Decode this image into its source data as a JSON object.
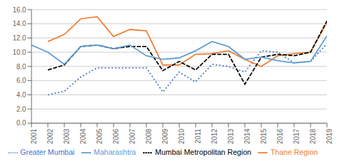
{
  "chart_data": {
    "type": "line",
    "x": [
      2001,
      2002,
      2003,
      2004,
      2005,
      2006,
      2007,
      2008,
      2009,
      2010,
      2011,
      2012,
      2013,
      2014,
      2015,
      2016,
      2017,
      2018,
      2019
    ],
    "series": [
      {
        "name": "Greater Mumbai",
        "color": "#4472C4",
        "line_style": "dotted",
        "values": [
          null,
          4.0,
          4.5,
          6.5,
          7.8,
          7.8,
          7.8,
          7.8,
          4.4,
          7.2,
          5.8,
          8.3,
          8.0,
          7.2,
          10.2,
          10.0,
          8.5,
          8.7,
          11.2
        ]
      },
      {
        "name": "Thane Region",
        "color": "#ED7D31",
        "line_style": "solid",
        "values": [
          null,
          11.5,
          12.5,
          14.7,
          15.0,
          12.2,
          13.2,
          13.0,
          8.2,
          8.2,
          9.7,
          9.8,
          10.2,
          9.0,
          8.0,
          9.5,
          9.8,
          10.0,
          14.2
        ]
      },
      {
        "name": "Mumbai Metropolitan Region",
        "color": "#000000",
        "line_style": "dashed",
        "values": [
          null,
          7.5,
          8.2,
          10.8,
          11.0,
          10.5,
          10.8,
          10.8,
          7.4,
          8.7,
          7.5,
          9.7,
          9.7,
          5.5,
          9.3,
          9.7,
          9.5,
          10.0,
          14.4
        ]
      },
      {
        "name": "Maharashtra",
        "color": "#5B9BD5",
        "line_style": "solid",
        "values": [
          11.0,
          10.0,
          8.3,
          10.8,
          11.0,
          10.5,
          11.0,
          9.5,
          9.0,
          9.2,
          10.2,
          11.5,
          10.8,
          9.0,
          9.3,
          8.8,
          8.5,
          8.7,
          12.3
        ]
      }
    ],
    "xlim": [
      2001,
      2019
    ],
    "xticks": [
      2001,
      2002,
      2003,
      2004,
      2005,
      2006,
      2007,
      2008,
      2009,
      2010,
      2011,
      2012,
      2013,
      2014,
      2015,
      2016,
      2017,
      2018,
      2019
    ],
    "ylim": [
      0.0,
      16.0
    ],
    "yticks": [
      {
        "value": 0.0,
        "label": "0.0"
      },
      {
        "value": 2.0,
        "label": "2.0"
      },
      {
        "value": 4.0,
        "label": "4.0"
      },
      {
        "value": 6.0,
        "label": "6.0"
      },
      {
        "value": 8.0,
        "label": "8.0"
      },
      {
        "value": 10.0,
        "label": "10.0"
      },
      {
        "value": 12.0,
        "label": "12.0"
      },
      {
        "value": 14.0,
        "label": "14.0"
      },
      {
        "value": 16.0,
        "label": "16.0"
      }
    ],
    "grid": true,
    "legend": "bottom"
  }
}
